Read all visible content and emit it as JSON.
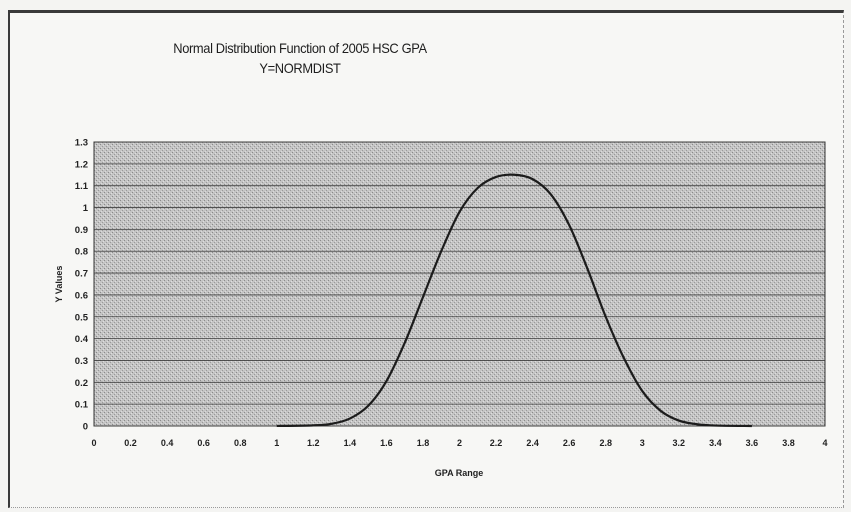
{
  "chart_data": {
    "type": "line",
    "title": "Normal Distribution Function of 2005  HSC GPA",
    "subtitle": "Y=NORMDIST",
    "xlabel": "GPA Range",
    "ylabel": "Y Values",
    "xlim": [
      0,
      4
    ],
    "ylim": [
      0,
      1.3
    ],
    "x_ticks": [
      "0",
      "0.2",
      "0.4",
      "0.6",
      "0.8",
      "1",
      "1.2",
      "1.4",
      "1.6",
      "1.8",
      "2",
      "2.2",
      "2.4",
      "2.6",
      "2.8",
      "3",
      "3.2",
      "3.4",
      "3.6",
      "3.8",
      "4"
    ],
    "y_ticks": [
      "0",
      "0.1",
      "0.2",
      "0.3",
      "0.4",
      "0.5",
      "0.6",
      "0.7",
      "0.8",
      "0.9",
      "1",
      "1.1",
      "1.2",
      "1.3"
    ],
    "grid": "horizontal",
    "legend": "none",
    "series": [
      {
        "x": [
          1.0,
          1.2,
          1.3,
          1.4,
          1.5,
          1.6,
          1.7,
          1.8,
          1.9,
          2.0,
          2.1,
          2.2,
          2.3,
          2.4,
          2.5,
          2.6,
          2.7,
          2.8,
          2.9,
          3.0,
          3.1,
          3.2,
          3.3,
          3.4,
          3.6
        ],
        "y": [
          0.0003,
          0.003,
          0.01,
          0.034,
          0.092,
          0.205,
          0.38,
          0.59,
          0.8,
          0.98,
          1.09,
          1.14,
          1.15,
          1.13,
          1.06,
          0.92,
          0.72,
          0.5,
          0.31,
          0.16,
          0.07,
          0.025,
          0.008,
          0.002,
          0.0001
        ],
        "color": "#1c1c1c"
      }
    ],
    "colors": {
      "plot_background": "#bdbdbd",
      "gridline": "#404040",
      "curve": "#1c1c1c"
    }
  }
}
